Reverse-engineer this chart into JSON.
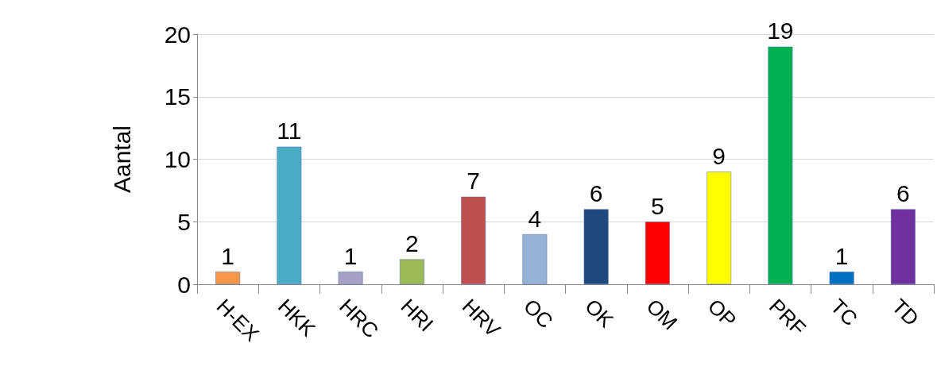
{
  "chart_data": {
    "type": "bar",
    "ylabel": "Aantal",
    "categories": [
      "H-EX",
      "HKK",
      "HRC",
      "HRI",
      "HRV",
      "OC",
      "OK",
      "OM",
      "OP",
      "PRF",
      "TC",
      "TD"
    ],
    "values": [
      1,
      11,
      1,
      2,
      7,
      4,
      6,
      5,
      9,
      19,
      1,
      6
    ],
    "colors": [
      "#f79646",
      "#4bacc6",
      "#a6a0c4",
      "#9bbb59",
      "#c0504d",
      "#95b3d7",
      "#1f497d",
      "#ff0000",
      "#ffff00",
      "#00b050",
      "#0070c0",
      "#7030a0"
    ],
    "ylim": [
      0,
      20
    ],
    "yticks": [
      0,
      5,
      10,
      15,
      20
    ],
    "grid": "y",
    "data_labels": true
  }
}
